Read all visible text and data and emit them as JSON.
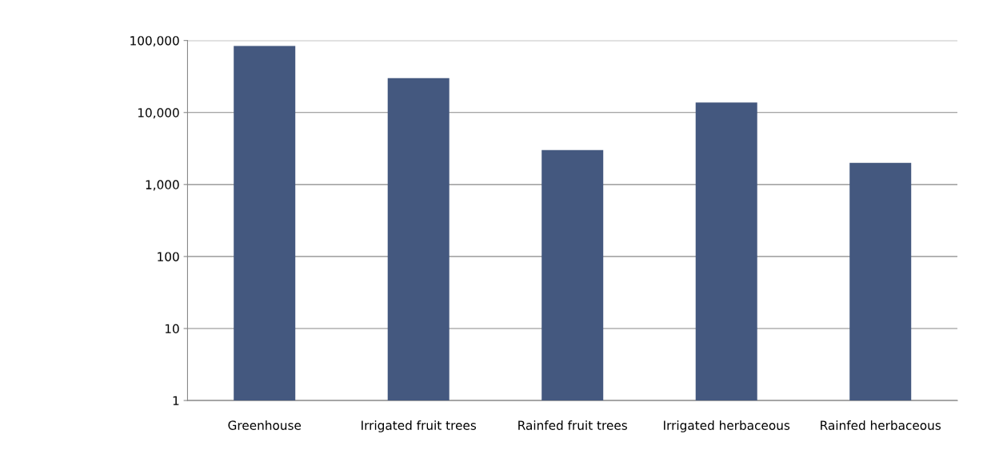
{
  "chart_data": {
    "type": "bar",
    "categories": [
      "Greenhouse",
      "Irrigated fruit trees",
      "Rainfed fruit trees",
      "Irrigated herbaceous",
      "Rainfed herbaceous"
    ],
    "values": [
      84000,
      30000,
      3000,
      13800,
      2000
    ],
    "color": "#44587f",
    "log": true,
    "ylim": [
      1,
      100000
    ],
    "yticks": [
      {
        "value": 1,
        "label": "1"
      },
      {
        "value": 10,
        "label": "10"
      },
      {
        "value": 100,
        "label": "100"
      },
      {
        "value": 1000,
        "label": "1,000"
      },
      {
        "value": 10000,
        "label": "10,000"
      },
      {
        "value": 100000,
        "label": "100,000"
      }
    ],
    "grid": "y"
  }
}
